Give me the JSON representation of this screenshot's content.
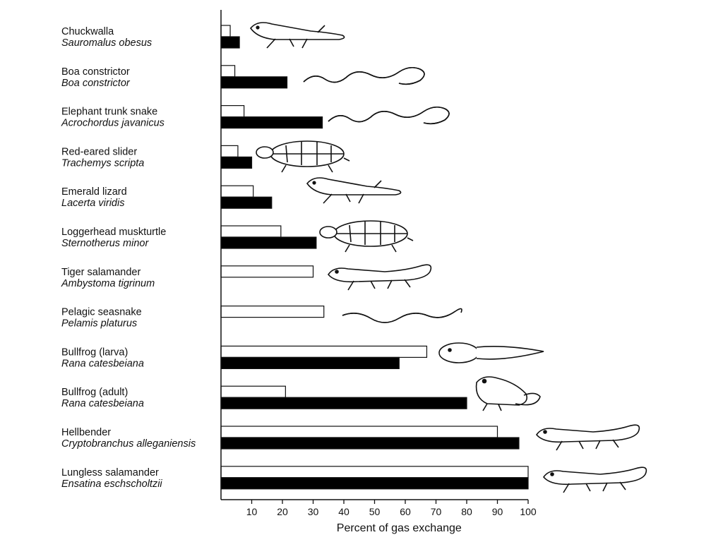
{
  "chart_data": {
    "type": "bar",
    "orientation": "horizontal",
    "xlabel": "Percent of gas exchange",
    "xlim": [
      0,
      100
    ],
    "xticks": [
      10,
      20,
      30,
      40,
      50,
      60,
      70,
      80,
      90,
      100
    ],
    "grid": false,
    "categories": [
      {
        "common": "Chuckwalla",
        "scientific": "Sauromalus obesus",
        "animal": "lizard-icon"
      },
      {
        "common": "Boa constrictor",
        "scientific": "Boa constrictor",
        "animal": "snake-icon"
      },
      {
        "common": "Elephant trunk snake",
        "scientific": "Acrochordus javanicus",
        "animal": "snake-icon"
      },
      {
        "common": "Red-eared slider",
        "scientific": "Trachemys  scripta",
        "animal": "turtle-icon"
      },
      {
        "common": "Emerald lizard",
        "scientific": "Lacerta viridis",
        "animal": "lizard-icon"
      },
      {
        "common": "Loggerhead muskturtle",
        "scientific": "Sternotherus minor",
        "animal": "turtle-icon"
      },
      {
        "common": "Tiger salamander",
        "scientific": "Ambystoma tigrinum",
        "animal": "salamander-icon"
      },
      {
        "common": "Pelagic seasnake",
        "scientific": "Pelamis platurus",
        "animal": "seasnake-icon"
      },
      {
        "common": "Bullfrog (larva)",
        "scientific": "Rana catesbeiana",
        "animal": "tadpole-icon"
      },
      {
        "common": "Bullfrog (adult)",
        "scientific": "Rana catesbeiana",
        "animal": "frog-icon"
      },
      {
        "common": "Hellbender",
        "scientific": "Cryptobranchus alleganiensis",
        "animal": "salamander-icon"
      },
      {
        "common": "Lungless salamander",
        "scientific": "Ensatina eschscholtzii",
        "animal": "salamander-icon"
      }
    ],
    "series": [
      {
        "fill": "#ffffff",
        "values": [
          3,
          4.5,
          7.5,
          5.5,
          10.5,
          19.5,
          30,
          33.5,
          67,
          21,
          90,
          100
        ]
      },
      {
        "fill": "#000000",
        "values": [
          6,
          21.5,
          33,
          10,
          16.5,
          31,
          null,
          null,
          58,
          80,
          97,
          100
        ]
      }
    ]
  }
}
